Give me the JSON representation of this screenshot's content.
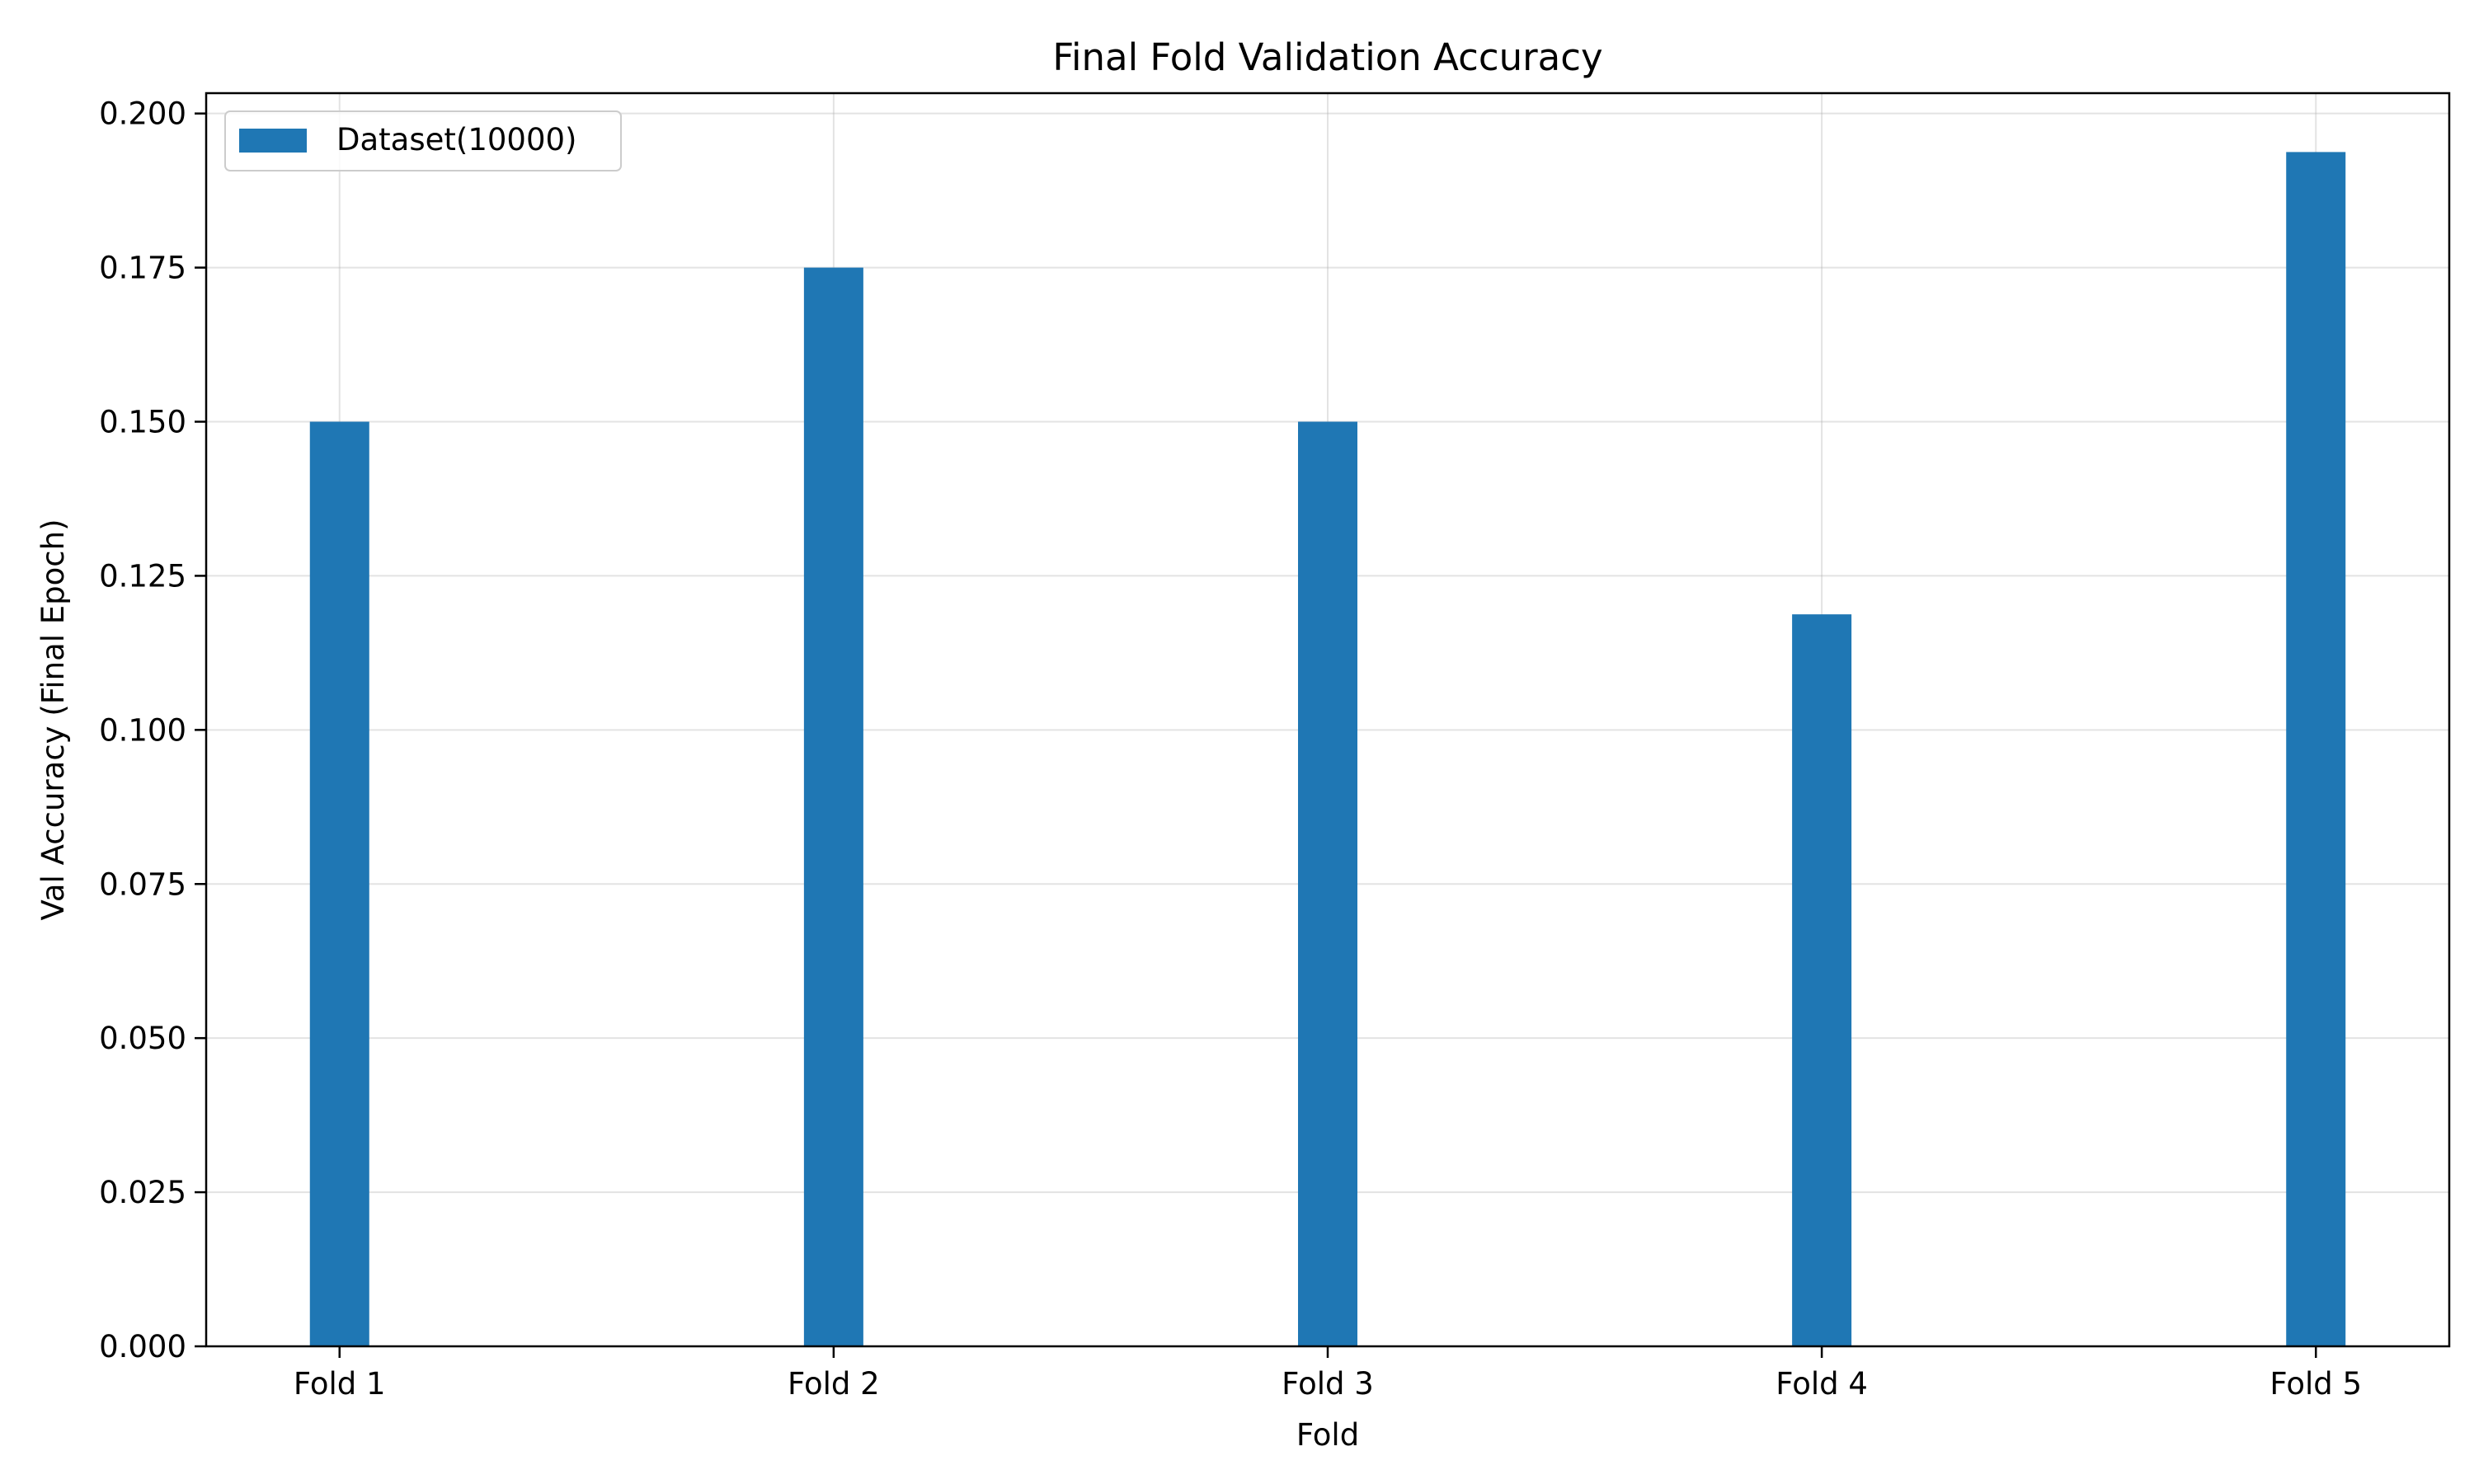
{
  "chart_data": {
    "type": "bar",
    "title": "Final Fold Validation Accuracy",
    "xlabel": "Fold",
    "ylabel": "Val Accuracy (Final Epoch)",
    "categories": [
      "Fold 1",
      "Fold 2",
      "Fold 3",
      "Fold 4",
      "Fold 5"
    ],
    "series": [
      {
        "name": "Dataset(10000)",
        "values": [
          0.15,
          0.175,
          0.15,
          0.11875,
          0.19375
        ],
        "color": "#1f77b4"
      }
    ],
    "ylim": [
      0,
      0.2033
    ],
    "yticks": [
      0.0,
      0.025,
      0.05,
      0.075,
      0.1,
      0.125,
      0.15,
      0.175,
      0.2
    ],
    "ytick_labels": [
      "0.000",
      "0.025",
      "0.050",
      "0.075",
      "0.100",
      "0.125",
      "0.150",
      "0.175",
      "0.200"
    ],
    "grid": true,
    "legend_position": "top-left"
  }
}
